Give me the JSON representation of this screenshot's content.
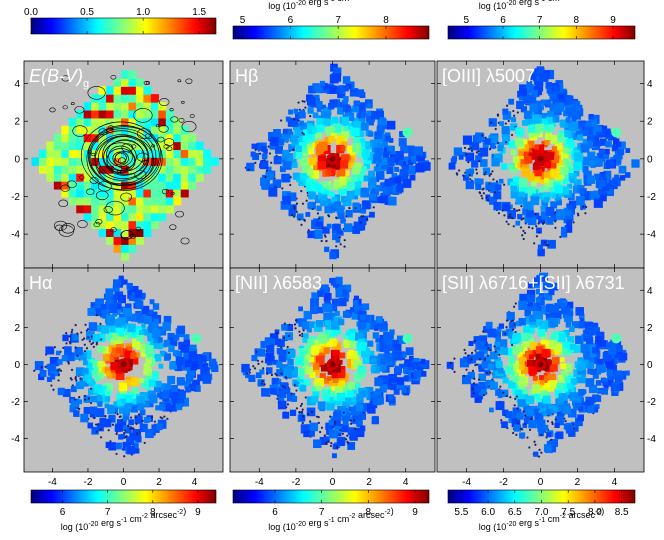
{
  "chart_data": [
    {
      "type": "heatmap",
      "map": "ebv",
      "label": "E(B-V)",
      "label_sub": "g",
      "xlim": [
        -5.6,
        5.6
      ],
      "ylim": [
        -5.8,
        5.2
      ],
      "xticks": [
        -4,
        -2,
        0,
        2,
        4
      ],
      "yticks": [
        -4,
        -2,
        0,
        2,
        4
      ],
      "show_yticks": true,
      "show_xticks": false,
      "colorbar": {
        "position": "top",
        "ticks": [
          "0.0",
          "0.5",
          "1.0",
          "1.5"
        ],
        "range": [
          0.0,
          1.65
        ]
      }
    },
    {
      "type": "heatmap",
      "map": "hb",
      "label": "Hβ",
      "xlim": [
        -5.6,
        5.6
      ],
      "ylim": [
        -5.8,
        5.2
      ],
      "xticks": [
        -4,
        -2,
        0,
        2,
        4
      ],
      "yticks": [
        -4,
        -2,
        0,
        2,
        4
      ],
      "show_yticks": false,
      "show_xticks": false,
      "colorbar": {
        "position": "top",
        "ticks": [
          "5",
          "6",
          "7",
          "8"
        ],
        "range": [
          4.8,
          8.9
        ],
        "unit": "log (10-20 erg s-1 cm-2 arcsec-2)"
      }
    },
    {
      "type": "heatmap",
      "map": "oiii",
      "label": "[OIII] λ5007",
      "xlim": [
        -5.6,
        5.6
      ],
      "ylim": [
        -5.8,
        5.2
      ],
      "xticks": [
        -4,
        -2,
        0,
        2,
        4
      ],
      "yticks": [
        -4,
        -2,
        0,
        2,
        4
      ],
      "show_yticks": true,
      "yticks_side": "right",
      "show_xticks": false,
      "colorbar": {
        "position": "top",
        "ticks": [
          "5",
          "6",
          "7",
          "8",
          "9"
        ],
        "range": [
          4.5,
          9.6
        ],
        "unit": "log (10-20 erg s-1 cm-2 arcsec-2)"
      }
    },
    {
      "type": "heatmap",
      "map": "ha",
      "label": "Hα",
      "xlim": [
        -5.6,
        5.6
      ],
      "ylim": [
        -5.8,
        5.2
      ],
      "xticks": [
        -4,
        -2,
        0,
        2,
        4
      ],
      "yticks": [
        -4,
        -2,
        0,
        2,
        4
      ],
      "show_yticks": true,
      "show_xticks": true,
      "colorbar": {
        "position": "bottom",
        "ticks": [
          "6",
          "7",
          "8",
          "9"
        ],
        "range": [
          5.3,
          9.4
        ],
        "unit": "log (10-20 erg s-1 cm-2 arcsec-2)"
      }
    },
    {
      "type": "heatmap",
      "map": "nii",
      "label": "[NII] λ6583",
      "xlim": [
        -5.6,
        5.6
      ],
      "ylim": [
        -5.8,
        5.2
      ],
      "xticks": [
        -4,
        -2,
        0,
        2,
        4
      ],
      "yticks": [
        -4,
        -2,
        0,
        2,
        4
      ],
      "show_yticks": false,
      "show_xticks": true,
      "colorbar": {
        "position": "bottom",
        "ticks": [
          "6",
          "7",
          "8",
          "9"
        ],
        "range": [
          5.1,
          9.3
        ],
        "unit": "log (10-20 erg s-1 cm-2 arcsec-2)"
      }
    },
    {
      "type": "heatmap",
      "map": "sii",
      "label": "[SII] λ6716+[SII] λ6731",
      "xlim": [
        -5.6,
        5.6
      ],
      "ylim": [
        -5.8,
        5.2
      ],
      "xticks": [
        -4,
        -2,
        0,
        2,
        4
      ],
      "yticks": [
        -4,
        -2,
        0,
        2,
        4
      ],
      "show_yticks": true,
      "yticks_side": "right",
      "show_xticks": true,
      "colorbar": {
        "position": "bottom",
        "ticks": [
          "5.5",
          "6.0",
          "6.5",
          "7.0",
          "7.5",
          "8.0",
          "8.5"
        ],
        "range": [
          5.25,
          8.75
        ],
        "unit": "log (10-20 erg s-1 cm-2 arcsec-2)"
      }
    }
  ],
  "colors": {
    "background": "#c0c0c0",
    "contour": "#000000",
    "noise": "#1a1f6e"
  }
}
